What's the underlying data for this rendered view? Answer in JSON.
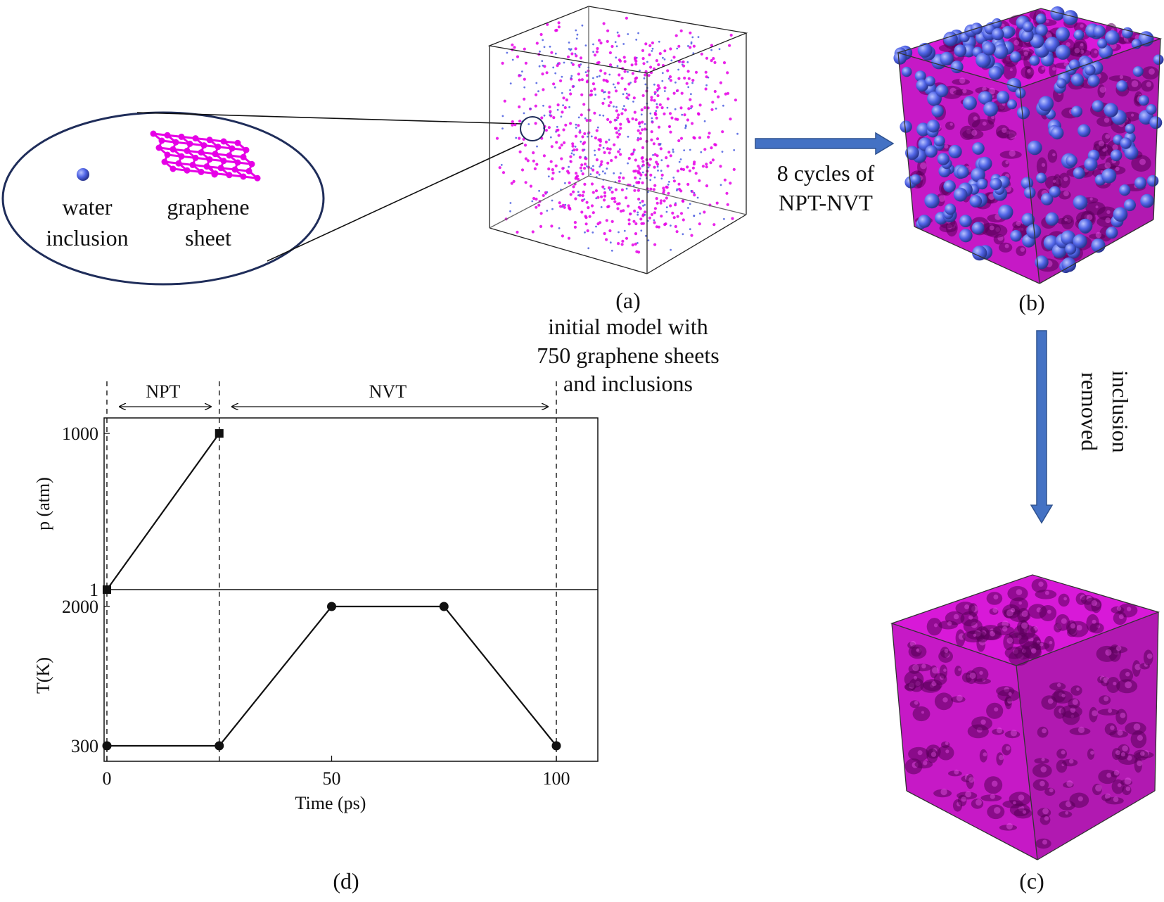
{
  "inset": {
    "water_label_1": "water",
    "water_label_2": "inclusion",
    "graphene_label_1": "graphene",
    "graphene_label_2": "sheet"
  },
  "arrows": {
    "right_label_1": "8 cycles of",
    "right_label_2": "NPT-NVT",
    "down_label_1": "inclusion",
    "down_label_2": "removed"
  },
  "captions": {
    "a": "(a)",
    "a_desc_1": "initial model with",
    "a_desc_2": "750 graphene sheets",
    "a_desc_3": "and inclusions",
    "b": "(b)",
    "c": "(c)",
    "d": "(d)"
  },
  "colors": {
    "graphene": "#e600e6",
    "water": "#4b5ee0",
    "arrow": "#4472c4",
    "ellipse_stroke": "#1f2d5a"
  },
  "chart_data": {
    "type": "line",
    "xlabel": "Time (ps)",
    "xticks": [
      "0",
      "50",
      "100"
    ],
    "xlim": [
      0,
      110
    ],
    "phases": [
      {
        "label": "NPT",
        "start": 0,
        "end": 25
      },
      {
        "label": "NVT",
        "start": 25,
        "end": 100
      }
    ],
    "panels": [
      {
        "ylabel": "p (atm)",
        "yticks": [
          "1",
          "1000"
        ],
        "ylim": [
          1,
          1000
        ],
        "marker": "square",
        "x": [
          0,
          25
        ],
        "y": [
          1,
          1000
        ]
      },
      {
        "ylabel": "T(K)",
        "yticks": [
          "300",
          "2000"
        ],
        "ylim": [
          300,
          2000
        ],
        "marker": "circle",
        "x": [
          0,
          25,
          50,
          75,
          100
        ],
        "y": [
          300,
          300,
          2000,
          2000,
          300
        ]
      }
    ]
  }
}
